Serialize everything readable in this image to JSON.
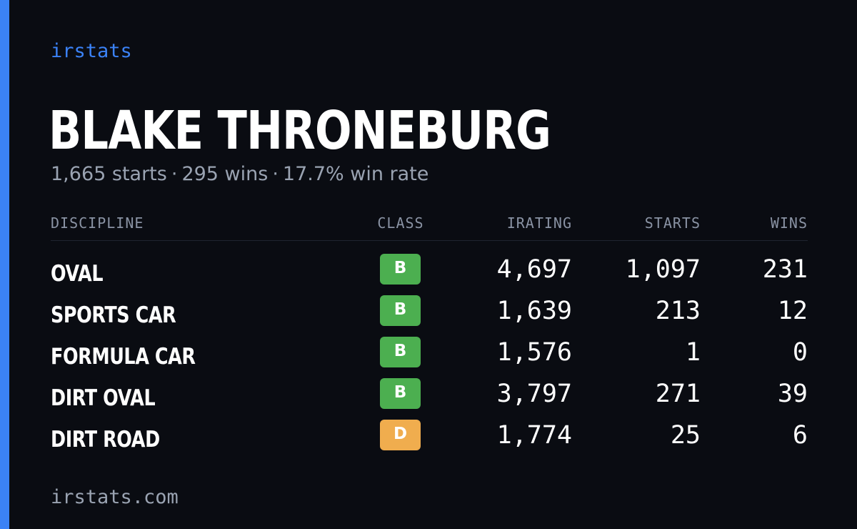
{
  "header": {
    "brand": "irstats",
    "driver_name": "BLAKE THRONEBURG",
    "summary": {
      "starts": "1,665 starts",
      "wins": "295 wins",
      "win_rate": "17.7% win rate",
      "separator": "·"
    }
  },
  "table": {
    "columns": {
      "discipline": "DISCIPLINE",
      "class": "CLASS",
      "irating": "IRATING",
      "starts": "STARTS",
      "wins": "WINS"
    },
    "rows": [
      {
        "discipline": "OVAL",
        "class": "B",
        "class_color": "#4caf50",
        "irating": "4,697",
        "starts": "1,097",
        "wins": "231"
      },
      {
        "discipline": "SPORTS CAR",
        "class": "B",
        "class_color": "#4caf50",
        "irating": "1,639",
        "starts": "213",
        "wins": "12"
      },
      {
        "discipline": "FORMULA CAR",
        "class": "B",
        "class_color": "#4caf50",
        "irating": "1,576",
        "starts": "1",
        "wins": "0"
      },
      {
        "discipline": "DIRT OVAL",
        "class": "B",
        "class_color": "#4caf50",
        "irating": "3,797",
        "starts": "271",
        "wins": "39"
      },
      {
        "discipline": "DIRT ROAD",
        "class": "D",
        "class_color": "#f0ad4e",
        "irating": "1,774",
        "starts": "25",
        "wins": "6"
      }
    ]
  },
  "footer": {
    "site": "irstats.com"
  },
  "colors": {
    "background": "#0a0c12",
    "accent": "#3b82f6",
    "muted_text": "#9aa3b2"
  }
}
